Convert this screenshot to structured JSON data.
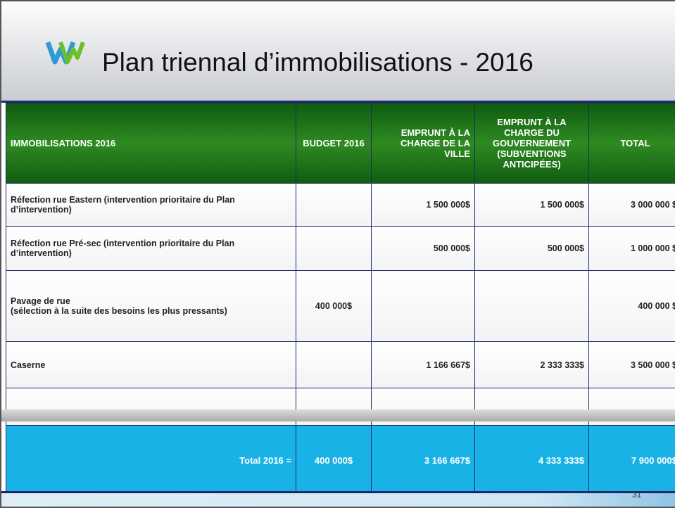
{
  "header": {
    "title": "Plan triennal d’immobilisations - 2016"
  },
  "table": {
    "columns": [
      "IMMOBILISATIONS 2016",
      "BUDGET 2016",
      "EMPRUNT À LA CHARGE DE LA VILLE",
      "EMPRUNT À LA CHARGE DU GOUVERNEMENT (SUBVENTIONS ANTICIPÉES)",
      "TOTAL"
    ],
    "rows": [
      [
        "Réfection rue Eastern (intervention prioritaire du Plan d’intervention)",
        null,
        "1 500 000$",
        "1 500 000$",
        "3 000 000 $"
      ],
      [
        "Réfection rue Pré-sec (intervention prioritaire du Plan d’intervention)",
        null,
        "500 000$",
        "500 000$",
        "1 000 000 $"
      ],
      [
        "Pavage de rue\n(sélection à la suite des besoins les plus pressants)",
        "400 000$",
        null,
        null,
        "400 000 $"
      ],
      [
        "Caserne",
        null,
        "1 166 667$",
        "2 333 333$",
        "3 500 000 $"
      ]
    ],
    "total": [
      "Total 2016 =",
      "400 000$",
      "3 166 667$",
      "4 333 333$",
      "7 900 000$"
    ]
  },
  "footer": {
    "page_number": "31"
  }
}
